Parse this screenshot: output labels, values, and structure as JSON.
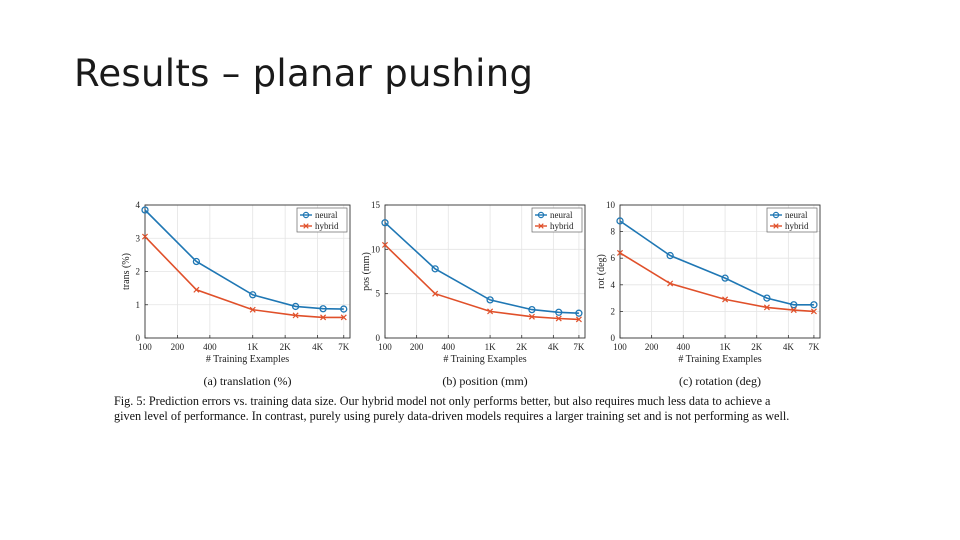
{
  "slide": {
    "title": "Results – planar pushing"
  },
  "figure": {
    "caption_line1": "Fig. 5: Prediction errors vs. training data size. Our hybrid model not only performs better, but also requires much less data to achieve a",
    "caption_line2": "given level of performance. In contrast, purely using purely data-driven models requires a larger training set and is not performing as well."
  },
  "colors": {
    "neural": "#1f77b4",
    "hybrid": "#e0502a",
    "axis": "#333333",
    "grid": "#e4e4e4"
  },
  "chart_data": [
    {
      "type": "line",
      "subtitle": "(a) translation (%)",
      "xlabel": "# Training Examples",
      "ylabel": "trans (%)",
      "x_scale": "log",
      "xlim": [
        100,
        8000
      ],
      "ylim": [
        0,
        4
      ],
      "xticks": [
        100,
        200,
        400,
        1000,
        2000,
        4000,
        7000
      ],
      "xtick_labels": [
        "100",
        "200",
        "400",
        "1K",
        "2K",
        "4K",
        "7K"
      ],
      "yticks": [
        0,
        1,
        2,
        3,
        4
      ],
      "grid": true,
      "legend": "top-right",
      "x": [
        100,
        300,
        1000,
        2500,
        4500,
        7000
      ],
      "series": [
        {
          "name": "neural",
          "marker": "circle",
          "values": [
            3.85,
            2.3,
            1.3,
            0.95,
            0.88,
            0.87
          ]
        },
        {
          "name": "hybrid",
          "marker": "x",
          "values": [
            3.05,
            1.45,
            0.85,
            0.68,
            0.62,
            0.62
          ]
        }
      ]
    },
    {
      "type": "line",
      "subtitle": "(b) position (mm)",
      "xlabel": "# Training Examples",
      "ylabel": "pos (mm)",
      "x_scale": "log",
      "xlim": [
        100,
        8000
      ],
      "ylim": [
        0,
        15
      ],
      "xticks": [
        100,
        200,
        400,
        1000,
        2000,
        4000,
        7000
      ],
      "xtick_labels": [
        "100",
        "200",
        "400",
        "1K",
        "2K",
        "4K",
        "7K"
      ],
      "yticks": [
        0,
        5,
        10,
        15
      ],
      "grid": true,
      "legend": "top-right",
      "x": [
        100,
        300,
        1000,
        2500,
        4500,
        7000
      ],
      "series": [
        {
          "name": "neural",
          "marker": "circle",
          "values": [
            13.0,
            7.8,
            4.3,
            3.2,
            2.9,
            2.8
          ]
        },
        {
          "name": "hybrid",
          "marker": "x",
          "values": [
            10.5,
            5.0,
            3.0,
            2.4,
            2.2,
            2.1
          ]
        }
      ]
    },
    {
      "type": "line",
      "subtitle": "(c) rotation (deg)",
      "xlabel": "# Training Examples",
      "ylabel": "rot (deg)",
      "x_scale": "log",
      "xlim": [
        100,
        8000
      ],
      "ylim": [
        0,
        10
      ],
      "xticks": [
        100,
        200,
        400,
        1000,
        2000,
        4000,
        7000
      ],
      "xtick_labels": [
        "100",
        "200",
        "400",
        "1K",
        "2K",
        "4K",
        "7K"
      ],
      "yticks": [
        0,
        2,
        4,
        6,
        8,
        10
      ],
      "grid": true,
      "legend": "top-right",
      "x": [
        100,
        300,
        1000,
        2500,
        4500,
        7000
      ],
      "series": [
        {
          "name": "neural",
          "marker": "circle",
          "values": [
            8.8,
            6.2,
            4.5,
            3.0,
            2.5,
            2.5
          ]
        },
        {
          "name": "hybrid",
          "marker": "x",
          "values": [
            6.4,
            4.1,
            2.9,
            2.3,
            2.1,
            2.0
          ]
        }
      ]
    }
  ]
}
